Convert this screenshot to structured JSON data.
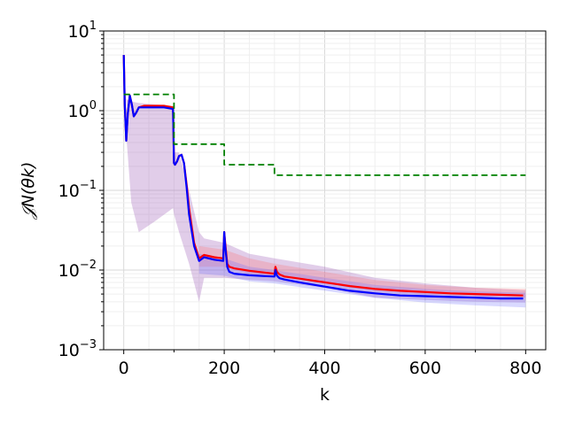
{
  "chart_data": {
    "type": "line",
    "xlabel": "k",
    "ylabel": "𝒥N(θk)",
    "yscale": "log",
    "xlim": [
      -40,
      840
    ],
    "ylim": [
      0.001,
      10
    ],
    "x_ticks": [
      0,
      200,
      400,
      600,
      800
    ],
    "x_tick_labels": [
      "0",
      "200",
      "400",
      "600",
      "800"
    ],
    "y_ticks": [
      0.001,
      0.01,
      0.1,
      1,
      10
    ],
    "y_tick_labels": [
      {
        "base": "10",
        "exp": "−3"
      },
      {
        "base": "10",
        "exp": "−2"
      },
      {
        "base": "10",
        "exp": "−1"
      },
      {
        "base": "10",
        "exp": "0"
      },
      {
        "base": "10",
        "exp": "1"
      }
    ],
    "grid": true,
    "legend": "none",
    "series": [
      {
        "color": "#ff0000",
        "style": "solid",
        "x": [
          0,
          2,
          5,
          8,
          12,
          16,
          20,
          25,
          30,
          40,
          60,
          80,
          98,
          100,
          102,
          106,
          110,
          115,
          120,
          125,
          130,
          140,
          150,
          160,
          180,
          198,
          200,
          202,
          206,
          210,
          220,
          250,
          280,
          300,
          302,
          305,
          310,
          320,
          350,
          400,
          450,
          500,
          550,
          600,
          650,
          700,
          750,
          795
        ],
        "y": [
          5.0,
          1.2,
          0.42,
          0.9,
          1.55,
          1.2,
          0.85,
          0.95,
          1.1,
          1.15,
          1.15,
          1.15,
          1.1,
          0.22,
          0.21,
          0.23,
          0.27,
          0.28,
          0.22,
          0.12,
          0.06,
          0.022,
          0.014,
          0.0155,
          0.0145,
          0.014,
          0.03,
          0.022,
          0.012,
          0.011,
          0.0105,
          0.0098,
          0.0093,
          0.009,
          0.011,
          0.0095,
          0.0088,
          0.0083,
          0.0078,
          0.007,
          0.0063,
          0.0058,
          0.0055,
          0.0053,
          0.0051,
          0.005,
          0.0049,
          0.0048
        ]
      },
      {
        "color": "#0000ff",
        "style": "solid",
        "x": [
          0,
          2,
          5,
          8,
          12,
          16,
          20,
          25,
          30,
          40,
          60,
          80,
          98,
          100,
          102,
          106,
          110,
          115,
          120,
          125,
          130,
          140,
          150,
          160,
          180,
          198,
          200,
          202,
          206,
          210,
          220,
          250,
          280,
          300,
          302,
          305,
          310,
          320,
          350,
          400,
          450,
          500,
          550,
          600,
          650,
          700,
          750,
          795
        ],
        "y": [
          5.0,
          1.2,
          0.42,
          0.9,
          1.55,
          1.2,
          0.85,
          0.95,
          1.1,
          1.1,
          1.1,
          1.1,
          1.05,
          0.22,
          0.21,
          0.23,
          0.27,
          0.28,
          0.22,
          0.11,
          0.05,
          0.02,
          0.013,
          0.0145,
          0.0135,
          0.013,
          0.03,
          0.02,
          0.011,
          0.0095,
          0.009,
          0.0086,
          0.0084,
          0.0083,
          0.01,
          0.0085,
          0.0079,
          0.0076,
          0.007,
          0.0062,
          0.0055,
          0.0051,
          0.0048,
          0.0047,
          0.0046,
          0.0045,
          0.0044,
          0.0044
        ]
      },
      {
        "color": "#008000",
        "style": "dashed",
        "x": [
          0,
          100,
          100,
          200,
          200,
          300,
          300,
          800
        ],
        "y": [
          1.6,
          1.6,
          0.38,
          0.38,
          0.21,
          0.21,
          0.155,
          0.155
        ]
      }
    ],
    "bands": [
      {
        "color": "#9b59b6",
        "opacity": 0.3,
        "x": [
          5,
          15,
          30,
          60,
          98,
          100,
          110,
          130,
          150,
          160,
          200,
          250,
          300,
          400,
          500,
          600,
          700,
          800
        ],
        "upper": [
          1.4,
          1.3,
          1.25,
          1.2,
          1.15,
          0.3,
          0.3,
          0.1,
          0.03,
          0.025,
          0.022,
          0.016,
          0.014,
          0.011,
          0.008,
          0.0068,
          0.006,
          0.0056
        ],
        "lower": [
          0.5,
          0.07,
          0.03,
          0.04,
          0.06,
          0.05,
          0.03,
          0.012,
          0.004,
          0.008,
          0.008,
          0.0075,
          0.0072,
          0.006,
          0.0045,
          0.0042,
          0.004,
          0.0039
        ]
      },
      {
        "color": "#ff6666",
        "opacity": 0.25,
        "x": [
          150,
          200,
          250,
          300,
          400,
          500,
          600,
          700,
          800
        ],
        "upper": [
          0.02,
          0.018,
          0.014,
          0.012,
          0.0095,
          0.0075,
          0.0065,
          0.006,
          0.0058
        ],
        "lower": [
          0.011,
          0.011,
          0.009,
          0.0085,
          0.0068,
          0.0055,
          0.005,
          0.0047,
          0.0045
        ]
      },
      {
        "color": "#6666ff",
        "opacity": 0.25,
        "x": [
          150,
          200,
          250,
          300,
          400,
          500,
          600,
          700,
          800
        ],
        "upper": [
          0.016,
          0.014,
          0.011,
          0.01,
          0.008,
          0.0065,
          0.0058,
          0.0054,
          0.0052
        ],
        "lower": [
          0.009,
          0.0085,
          0.0072,
          0.0068,
          0.0055,
          0.0045,
          0.0039,
          0.0036,
          0.0034
        ]
      }
    ]
  }
}
